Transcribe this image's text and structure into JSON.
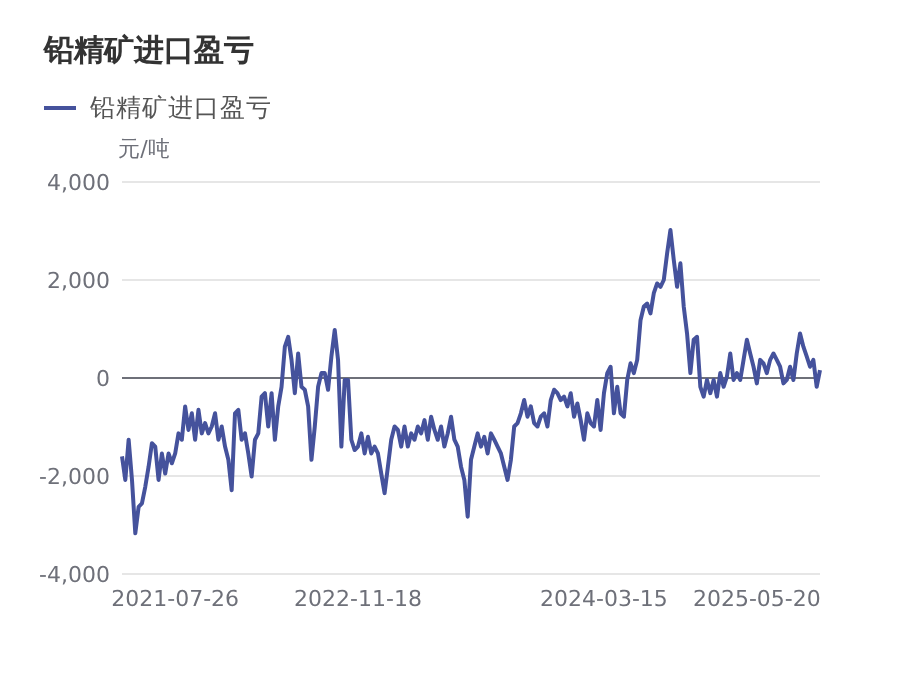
{
  "chart_data": {
    "type": "line",
    "title": "铅精矿进口盈亏",
    "ylabel": "元/吨",
    "categories": [
      null,
      null,
      null,
      null,
      null,
      null,
      null,
      null,
      null,
      null,
      null,
      null,
      null,
      null,
      null,
      null,
      "2021-07-26",
      null,
      null,
      null,
      null,
      null,
      null,
      null,
      null,
      null,
      null,
      null,
      null,
      null,
      null,
      null,
      null,
      null,
      null,
      null,
      null,
      null,
      null,
      null,
      null,
      null,
      null,
      null,
      null,
      null,
      null,
      null,
      null,
      null,
      null,
      null,
      null,
      null,
      null,
      null,
      null,
      null,
      null,
      null,
      null,
      null,
      null,
      null,
      null,
      null,
      null,
      null,
      null,
      null,
      null,
      "2022-11-18",
      null,
      null,
      null,
      null,
      null,
      null,
      null,
      null,
      null,
      null,
      null,
      null,
      null,
      null,
      null,
      null,
      null,
      null,
      null,
      null,
      null,
      null,
      null,
      null,
      null,
      null,
      null,
      null,
      null,
      null,
      null,
      null,
      null,
      null,
      null,
      null,
      null,
      null,
      null,
      null,
      null,
      null,
      null,
      null,
      null,
      null,
      null,
      null,
      null,
      null,
      null,
      null,
      null,
      null,
      null,
      null,
      null,
      null,
      null,
      null,
      null,
      null,
      null,
      null,
      null,
      null,
      null,
      null,
      null,
      null,
      null,
      null,
      null,
      "2024-03-15",
      null,
      null,
      null,
      null,
      null,
      null,
      null,
      null,
      null,
      null,
      null,
      null,
      null,
      null,
      null,
      null,
      null,
      null,
      null,
      null,
      null,
      null,
      null,
      null,
      null,
      null,
      null,
      null,
      null,
      null,
      null,
      null,
      null,
      null,
      null,
      null,
      null,
      null,
      null,
      null,
      null,
      null,
      null,
      null,
      null,
      "2025-05-20",
      null,
      null,
      null,
      null,
      null,
      null,
      null,
      null,
      null,
      null,
      null,
      null,
      null,
      null,
      null,
      null,
      null,
      null,
      null
    ],
    "series": [
      {
        "name": "铅精矿进口盈亏",
        "color": "#45529c",
        "values": [
          -1600,
          -2080,
          -1260,
          -2080,
          -3170,
          -2630,
          -2560,
          -2220,
          -1810,
          -1330,
          -1400,
          -2080,
          -1540,
          -1950,
          -1540,
          -1740,
          -1540,
          -1130,
          -1260,
          -580,
          -1060,
          -720,
          -1260,
          -650,
          -1130,
          -920,
          -1130,
          -990,
          -720,
          -1260,
          -990,
          -1400,
          -1670,
          -2290,
          -720,
          -650,
          -1260,
          -1130,
          -1540,
          -2010,
          -1260,
          -1130,
          -380,
          -310,
          -990,
          -310,
          -1260,
          -580,
          -180,
          640,
          840,
          370,
          -310,
          500,
          -180,
          -240,
          -580,
          -1670,
          -990,
          -180,
          100,
          100,
          -240,
          440,
          980,
          370,
          -1400,
          -40,
          -40,
          -1260,
          -1470,
          -1400,
          -1130,
          -1540,
          -1200,
          -1540,
          -1400,
          -1540,
          -1950,
          -2350,
          -1810,
          -1260,
          -990,
          -1060,
          -1400,
          -990,
          -1400,
          -1130,
          -1260,
          -990,
          -1130,
          -860,
          -1260,
          -790,
          -1060,
          -1260,
          -990,
          -1400,
          -1130,
          -790,
          -1260,
          -1400,
          -1810,
          -2080,
          -2830,
          -1670,
          -1400,
          -1130,
          -1400,
          -1200,
          -1540,
          -1130,
          -1260,
          -1400,
          -1540,
          -1810,
          -2080,
          -1670,
          -990,
          -920,
          -720,
          -450,
          -790,
          -580,
          -920,
          -990,
          -790,
          -720,
          -990,
          -450,
          -240,
          -310,
          -450,
          -380,
          -580,
          -310,
          -790,
          -520,
          -860,
          -1260,
          -720,
          -920,
          -990,
          -450,
          -1060,
          -310,
          100,
          230,
          -720,
          -180,
          -720,
          -790,
          -40,
          300,
          100,
          370,
          1180,
          1460,
          1520,
          1320,
          1730,
          1930,
          1860,
          2000,
          2540,
          3020,
          2410,
          1860,
          2340,
          1460,
          910,
          100,
          780,
          840,
          -180,
          -380,
          -40,
          -310,
          -40,
          -380,
          100,
          -180,
          30,
          500,
          -40,
          100,
          -40,
          370,
          780,
          500,
          230,
          -110,
          370,
          300,
          100,
          370,
          500,
          370,
          230,
          -110,
          -40,
          230,
          -40,
          500,
          910,
          640,
          440,
          230,
          370,
          -180,
          160
        ]
      }
    ],
    "ylim": [
      -4000,
      4000
    ],
    "yticks": [
      {
        "value": -4000,
        "label": "-4,000"
      },
      {
        "value": -2000,
        "label": "-2,000"
      },
      0,
      {
        "value": 2000,
        "label": "2,000"
      },
      {
        "value": 4000,
        "label": "4,000"
      }
    ],
    "ref_lines": [
      {
        "axis": "y",
        "value": 0,
        "color": "#6e7079"
      }
    ],
    "grid": "y",
    "legend": "top left"
  }
}
